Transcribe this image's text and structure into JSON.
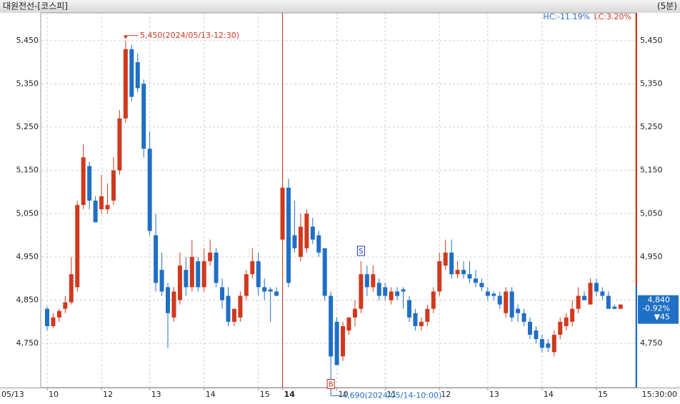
{
  "chart_data": {
    "type": "candlestick",
    "title": "대원전선-[코스피]",
    "interval": "(5분)",
    "hc": "HC:-11.19%",
    "lc": "LC:3.20%",
    "up_color": "#d0391e",
    "down_color": "#1f6fc5",
    "grid": true,
    "ylim": [
      4648,
      5514
    ],
    "yticks": [
      {
        "value": 4750,
        "label": "4,750"
      },
      {
        "value": 4850,
        "label": "4,850"
      },
      {
        "value": 4950,
        "label": "4,950"
      },
      {
        "value": 5050,
        "label": "5,050"
      },
      {
        "value": 5150,
        "label": "5,150"
      },
      {
        "value": 5250,
        "label": "5,250"
      },
      {
        "value": 5350,
        "label": "5,350"
      },
      {
        "value": 5450,
        "label": "5,450"
      }
    ],
    "x_start_label": "05/13",
    "x_end_label": "15:30:00",
    "xticks": [
      {
        "value": 0,
        "label": "10"
      },
      {
        "value": 9,
        "label": "12"
      },
      {
        "value": 17,
        "label": "13"
      },
      {
        "value": 26,
        "label": "14"
      },
      {
        "value": 35,
        "label": "15"
      },
      {
        "value": 39,
        "label": "14"
      },
      {
        "value": 48,
        "label": "10"
      },
      {
        "value": 56,
        "label": "11"
      },
      {
        "value": 65,
        "label": "12"
      },
      {
        "value": 73,
        "label": "13"
      },
      {
        "value": 82,
        "label": "14"
      },
      {
        "value": 91,
        "label": "15"
      }
    ],
    "session_break": 39,
    "annotations": [
      {
        "text": "5,450(2024/05/13-12:30)",
        "candle": 13,
        "kind": "high"
      },
      {
        "text": "4,690(2024/05/14-10:00)",
        "candle": 47,
        "kind": "low"
      }
    ],
    "signals": [
      {
        "label": "S",
        "candle": 52
      },
      {
        "label": "B",
        "candle": 47
      }
    ],
    "last_price": {
      "price": "4,840",
      "change_pct": "-0.92%",
      "change": "▼45"
    },
    "candles": [
      [
        4830,
        4835,
        4780,
        4790
      ],
      [
        4790,
        4820,
        4785,
        4810
      ],
      [
        4810,
        4830,
        4800,
        4825
      ],
      [
        4830,
        4860,
        4820,
        4845
      ],
      [
        4845,
        4950,
        4840,
        4910
      ],
      [
        4880,
        5080,
        4870,
        5070
      ],
      [
        5070,
        5210,
        5060,
        5180
      ],
      [
        5160,
        5170,
        5060,
        5080
      ],
      [
        5080,
        5090,
        5030,
        5030
      ],
      [
        5060,
        5140,
        5050,
        5090
      ],
      [
        5060,
        5120,
        5050,
        5070
      ],
      [
        5080,
        5180,
        5070,
        5150
      ],
      [
        5150,
        5290,
        5140,
        5270
      ],
      [
        5270,
        5450,
        5260,
        5430
      ],
      [
        5430,
        5440,
        5310,
        5320
      ],
      [
        5400,
        5420,
        5330,
        5340
      ],
      [
        5350,
        5360,
        5180,
        5200
      ],
      [
        5200,
        5240,
        5000,
        5010
      ],
      [
        5000,
        5050,
        4870,
        4890
      ],
      [
        4920,
        4960,
        4860,
        4870
      ],
      [
        4880,
        4890,
        4740,
        4820
      ],
      [
        4810,
        4880,
        4800,
        4870
      ],
      [
        4850,
        4960,
        4840,
        4930
      ],
      [
        4920,
        4950,
        4860,
        4880
      ],
      [
        4880,
        4990,
        4870,
        4950
      ],
      [
        4940,
        4950,
        4870,
        4880
      ],
      [
        4880,
        4970,
        4870,
        4940
      ],
      [
        4940,
        4990,
        4930,
        4960
      ],
      [
        4960,
        4970,
        4880,
        4890
      ],
      [
        4880,
        4900,
        4830,
        4850
      ],
      [
        4860,
        4880,
        4790,
        4800
      ],
      [
        4800,
        4830,
        4790,
        4830
      ],
      [
        4810,
        4870,
        4800,
        4860
      ],
      [
        4860,
        4920,
        4850,
        4910
      ],
      [
        4910,
        4970,
        4900,
        4940
      ],
      [
        4940,
        4960,
        4860,
        4880
      ],
      [
        4880,
        4900,
        4850,
        4870
      ],
      [
        4875,
        4880,
        4800,
        4870
      ],
      [
        4870,
        4880,
        4860,
        4860
      ],
      [
        4990,
        5260,
        4880,
        5110
      ],
      [
        5110,
        5130,
        4880,
        4890
      ],
      [
        5000,
        5080,
        4960,
        4970
      ],
      [
        4950,
        5050,
        4940,
        5020
      ],
      [
        4970,
        5060,
        4960,
        5050
      ],
      [
        5020,
        5040,
        4980,
        4990
      ],
      [
        5000,
        5010,
        4950,
        4960
      ],
      [
        4970,
        4970,
        4850,
        4860
      ],
      [
        4860,
        4870,
        4690,
        4720
      ],
      [
        4800,
        4810,
        4700,
        4700
      ],
      [
        4720,
        4800,
        4710,
        4790
      ],
      [
        4780,
        4810,
        4770,
        4810
      ],
      [
        4810,
        4850,
        4790,
        4830
      ],
      [
        4830,
        4940,
        4820,
        4910
      ],
      [
        4910,
        4930,
        4860,
        4880
      ],
      [
        4880,
        4930,
        4870,
        4910
      ],
      [
        4890,
        4900,
        4850,
        4860
      ],
      [
        4880,
        4890,
        4850,
        4860
      ],
      [
        4850,
        4880,
        4840,
        4870
      ],
      [
        4870,
        4880,
        4850,
        4860
      ],
      [
        4875,
        4880,
        4830,
        4870
      ],
      [
        4850,
        4860,
        4800,
        4810
      ],
      [
        4820,
        4830,
        4780,
        4790
      ],
      [
        4790,
        4810,
        4780,
        4800
      ],
      [
        4800,
        4840,
        4790,
        4830
      ],
      [
        4830,
        4880,
        4820,
        4870
      ],
      [
        4870,
        4960,
        4860,
        4940
      ],
      [
        4930,
        4990,
        4920,
        4960
      ],
      [
        4960,
        4990,
        4900,
        4910
      ],
      [
        4910,
        4940,
        4900,
        4920
      ],
      [
        4920,
        4940,
        4900,
        4910
      ],
      [
        4910,
        4940,
        4890,
        4900
      ],
      [
        4900,
        4920,
        4880,
        4890
      ],
      [
        4890,
        4900,
        4870,
        4880
      ],
      [
        4870,
        4880,
        4850,
        4860
      ],
      [
        4865,
        4870,
        4850,
        4860
      ],
      [
        4860,
        4870,
        4830,
        4840
      ],
      [
        4820,
        4880,
        4810,
        4870
      ],
      [
        4870,
        4880,
        4800,
        4810
      ],
      [
        4830,
        4840,
        4800,
        4820
      ],
      [
        4820,
        4830,
        4790,
        4800
      ],
      [
        4800,
        4810,
        4760,
        4770
      ],
      [
        4780,
        4790,
        4750,
        4760
      ],
      [
        4760,
        4770,
        4730,
        4740
      ],
      [
        4750,
        4760,
        4730,
        4740
      ],
      [
        4730,
        4780,
        4720,
        4770
      ],
      [
        4770,
        4810,
        4760,
        4800
      ],
      [
        4790,
        4820,
        4780,
        4810
      ],
      [
        4800,
        4850,
        4790,
        4830
      ],
      [
        4830,
        4880,
        4820,
        4860
      ],
      [
        4860,
        4870,
        4850,
        4850
      ],
      [
        4840,
        4900,
        4840,
        4890
      ],
      [
        4890,
        4900,
        4860,
        4870
      ],
      [
        4870,
        4880,
        4850,
        4860
      ],
      [
        4860,
        4870,
        4830,
        4830
      ],
      [
        4835,
        4840,
        4830,
        4830
      ],
      [
        4830,
        4840,
        4830,
        4840
      ]
    ]
  }
}
